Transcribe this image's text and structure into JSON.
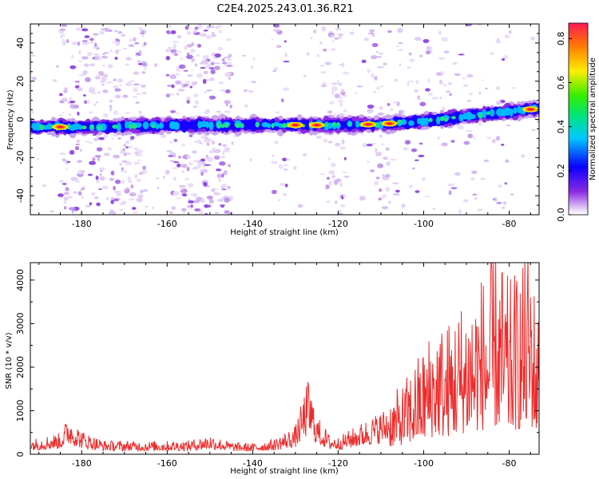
{
  "title": "C2E4.2025.243.01.36.R21",
  "chart_data": [
    {
      "type": "heatmap",
      "title": "C2E4.2025.243.01.36.R21",
      "xlabel": "Height of straight line (km)",
      "ylabel": "Frequency (Hz)",
      "xlim": [
        -192,
        -73
      ],
      "ylim": [
        -50,
        50
      ],
      "xticks": [
        -180,
        -160,
        -140,
        -120,
        -100,
        -80
      ],
      "yticks": [
        -40,
        -20,
        0,
        20,
        40
      ],
      "grid": false,
      "colorbar": {
        "label": "Normalized spectral amplitude",
        "range": [
          0,
          0.87
        ],
        "ticks": [
          "0.0",
          "0.2",
          "0.4",
          "0.6",
          "0.8"
        ]
      },
      "ridge": {
        "description": "dominant frequency ridge",
        "x": [
          -192,
          -180,
          -160,
          -140,
          -120,
          -110,
          -100,
          -90,
          -80,
          -74
        ],
        "frequency": [
          -4,
          -4,
          -3,
          -3,
          -3,
          -2.5,
          -1,
          1.5,
          4,
          5.5
        ],
        "peak_amplitude_heights": [
          -185,
          -130,
          -125,
          -113,
          -108,
          -75
        ]
      }
    },
    {
      "type": "line",
      "xlabel": "Height of straight line (km)",
      "ylabel": "SNR (10 * v/v)",
      "xlim": [
        -192,
        -73
      ],
      "ylim": [
        0,
        4400
      ],
      "xticks": [
        -180,
        -160,
        -140,
        -120,
        -100,
        -80
      ],
      "yticks": [
        0,
        1000,
        2000,
        3000,
        4000
      ],
      "color": "#ee2b2b",
      "series": [
        {
          "name": "SNR",
          "envelope_x": [
            -192,
            -185,
            -183,
            -180,
            -175,
            -165,
            -155,
            -150,
            -145,
            -140,
            -135,
            -130,
            -127,
            -125,
            -122,
            -120,
            -115,
            -110,
            -105,
            -102,
            -100,
            -97,
            -95,
            -90,
            -85,
            -83,
            -80,
            -77,
            -75,
            -74,
            -73
          ],
          "envelope_max": [
            350,
            500,
            900,
            550,
            320,
            300,
            320,
            450,
            280,
            250,
            350,
            650,
            1750,
            900,
            450,
            400,
            700,
            1000,
            1400,
            1900,
            2200,
            2800,
            2600,
            3300,
            3800,
            4200,
            3500,
            3900,
            4400,
            3300,
            2900
          ]
        }
      ]
    }
  ]
}
